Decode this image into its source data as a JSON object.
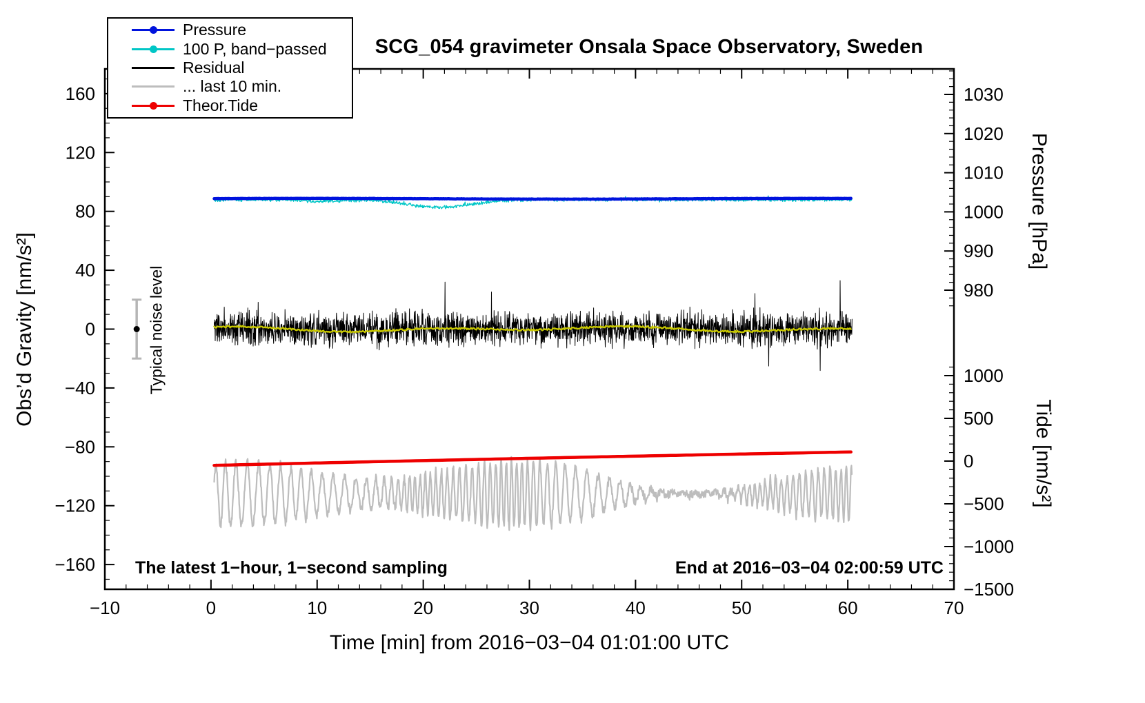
{
  "chart_data": {
    "type": "line",
    "title": "SCG_054 gravimeter Onsala Space Observatory, Sweden",
    "x_axis": {
      "label": "Time [min] from 2016−03−04 01:01:00 UTC",
      "range": [
        -10,
        70
      ],
      "major_ticks": [
        -10,
        0,
        10,
        20,
        30,
        40,
        50,
        60,
        70
      ],
      "tick_labels": [
        "−10",
        "0",
        "10",
        "20",
        "30",
        "40",
        "50",
        "60",
        "70"
      ],
      "minor_step": 2
    },
    "y_gravity": {
      "label": "Obs’d Gravity [nm/s²]",
      "range": [
        -176.8,
        176.8
      ],
      "major_ticks": [
        160,
        120,
        80,
        40,
        0,
        -40,
        -80,
        -120,
        -160
      ],
      "tick_labels": [
        "160",
        "120",
        "80",
        "40",
        "0",
        "−40",
        "−80",
        "−120",
        "−160"
      ],
      "minor_step": 10
    },
    "y_pressure": {
      "label": "Pressure [hPa]",
      "major_ticks": [
        1030,
        1020,
        1010,
        1000,
        990,
        980
      ],
      "tick_labels": [
        "1030",
        "1020",
        "1010",
        "1000",
        "990",
        "980"
      ],
      "minor_step": 2
    },
    "y_tide": {
      "label": "Tide [nm/s²]",
      "major_ticks": [
        1000,
        500,
        0,
        -500,
        -1000,
        -1500
      ],
      "tick_labels": [
        "1000",
        "500",
        "0",
        "−500",
        "−1000",
        "−1500"
      ],
      "minor_step": 100
    },
    "series": [
      {
        "name": "Pressure",
        "kind": "pressure",
        "color": "#0013dd",
        "width": 4.5,
        "baseline_gravity": 88.45,
        "approx_value_hpa": 1003,
        "x_start": 0.3,
        "x_end": 60.4
      },
      {
        "name": "100 P, band−passed",
        "kind": "bandpassed",
        "color": "#00c6c6",
        "width": 1.3,
        "baseline_gravity": 87.9,
        "dip_center_min": 21.5,
        "dip_depth": 5.2,
        "x_start": 0.3,
        "x_end": 60.4
      },
      {
        "name": "Residual",
        "kind": "residual",
        "color": "#000000",
        "width": 1,
        "mean_gravity": 0,
        "typical_amplitude": 11,
        "max_amplitude": 38,
        "x_start": 0.3,
        "x_end": 60.4
      },
      {
        "name": "Residual (smoothed)",
        "kind": "smooth",
        "color": "#c9c900",
        "width": 2.4,
        "mean_gravity": 0,
        "slow_amplitude": 2,
        "x_start": 0.3,
        "x_end": 60.4
      },
      {
        "name": "... last 10 min.",
        "kind": "last10",
        "color": "#bdbdbd",
        "width": 2.2,
        "mean_gravity": -112,
        "amplitude_range": [
          4,
          28
        ],
        "x_start": 0.3,
        "x_end": 60.4
      },
      {
        "name": "Theor.Tide",
        "kind": "tide",
        "color": "#ee0000",
        "width": 4.5,
        "start_gravity": -92.6,
        "end_gravity": -83.4,
        "approx_tide_axis_start": -60,
        "approx_tide_axis_end": 105,
        "x_start": 0.3,
        "x_end": 60.4
      }
    ],
    "legend": {
      "position": "top-left",
      "items": [
        {
          "label": "Pressure",
          "color": "#0013dd",
          "marker": "line-dot"
        },
        {
          "label": "100 P, band−passed",
          "color": "#00c6c6",
          "marker": "line-dot"
        },
        {
          "label": "Residual",
          "color": "#000000",
          "marker": "line"
        },
        {
          "label": "... last 10 min.",
          "color": "#bdbdbd",
          "marker": "line"
        },
        {
          "label": "Theor.Tide",
          "color": "#ee0000",
          "marker": "line-dot"
        }
      ]
    },
    "noise_bar": {
      "x": -7,
      "center": 0,
      "half_range": 20,
      "label": "Typical noise level",
      "bar_color": "#b5b5b5",
      "dot_color": "#000000"
    },
    "footer_left": "The latest 1−hour, 1−second sampling",
    "footer_right": "End at 2016−03−04 02:00:59 UTC",
    "grid": false
  }
}
